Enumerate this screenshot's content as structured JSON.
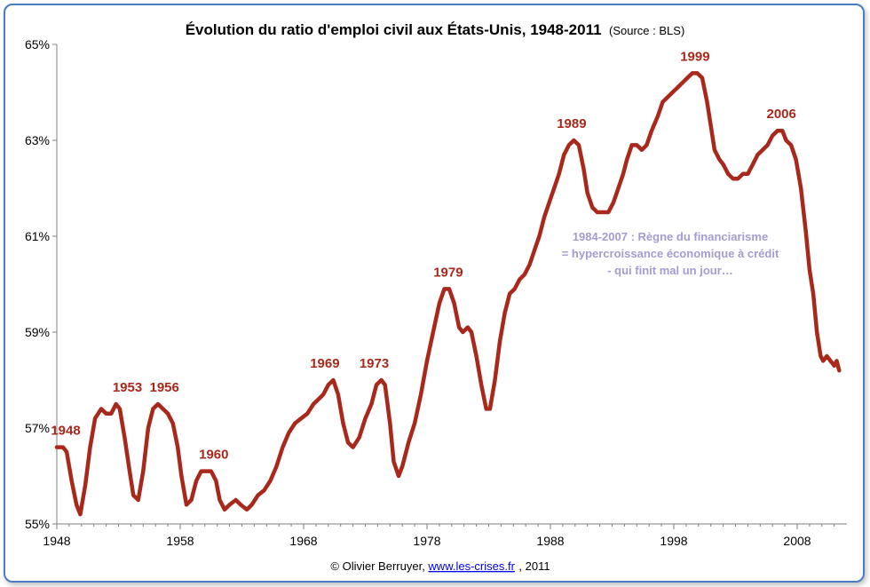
{
  "chart_data": {
    "type": "line",
    "title": "Évolution du ratio d'emploi civil aux États-Unis, 1948-2011",
    "title_source": "(Source : BLS)",
    "xlim": [
      1948,
      2011.5
    ],
    "ylim": [
      55,
      65
    ],
    "x_ticks": [
      1948,
      1958,
      1968,
      1978,
      1988,
      1998,
      2008
    ],
    "x_tick_labels": [
      "1948",
      "1958",
      "1968",
      "1978",
      "1988",
      "1998",
      "2008"
    ],
    "y_ticks": [
      55,
      57,
      59,
      61,
      63,
      65
    ],
    "y_tick_labels": [
      "55%",
      "57%",
      "59%",
      "61%",
      "63%",
      "65%"
    ],
    "grid": false,
    "color": "#a8291c",
    "series": [
      {
        "points": [
          [
            1948.0,
            56.6
          ],
          [
            1948.5,
            56.6
          ],
          [
            1948.8,
            56.5
          ],
          [
            1949.2,
            55.9
          ],
          [
            1949.6,
            55.4
          ],
          [
            1949.9,
            55.2
          ],
          [
            1950.3,
            55.8
          ],
          [
            1950.7,
            56.6
          ],
          [
            1951.1,
            57.2
          ],
          [
            1951.6,
            57.4
          ],
          [
            1952.0,
            57.3
          ],
          [
            1952.4,
            57.3
          ],
          [
            1952.8,
            57.5
          ],
          [
            1953.1,
            57.4
          ],
          [
            1953.5,
            56.8
          ],
          [
            1953.9,
            56.1
          ],
          [
            1954.2,
            55.6
          ],
          [
            1954.6,
            55.5
          ],
          [
            1955.0,
            56.1
          ],
          [
            1955.4,
            57.0
          ],
          [
            1955.8,
            57.4
          ],
          [
            1956.2,
            57.5
          ],
          [
            1956.6,
            57.4
          ],
          [
            1957.0,
            57.3
          ],
          [
            1957.4,
            57.1
          ],
          [
            1957.8,
            56.6
          ],
          [
            1958.1,
            56.0
          ],
          [
            1958.5,
            55.4
          ],
          [
            1958.9,
            55.5
          ],
          [
            1959.3,
            55.9
          ],
          [
            1959.7,
            56.1
          ],
          [
            1960.1,
            56.1
          ],
          [
            1960.5,
            56.1
          ],
          [
            1960.9,
            55.9
          ],
          [
            1961.2,
            55.5
          ],
          [
            1961.6,
            55.3
          ],
          [
            1962.0,
            55.4
          ],
          [
            1962.5,
            55.5
          ],
          [
            1962.9,
            55.4
          ],
          [
            1963.4,
            55.3
          ],
          [
            1963.8,
            55.4
          ],
          [
            1964.3,
            55.6
          ],
          [
            1964.8,
            55.7
          ],
          [
            1965.3,
            55.9
          ],
          [
            1965.8,
            56.2
          ],
          [
            1966.3,
            56.6
          ],
          [
            1966.8,
            56.9
          ],
          [
            1967.3,
            57.1
          ],
          [
            1967.8,
            57.2
          ],
          [
            1968.3,
            57.3
          ],
          [
            1968.8,
            57.5
          ],
          [
            1969.2,
            57.6
          ],
          [
            1969.6,
            57.7
          ],
          [
            1970.0,
            57.9
          ],
          [
            1970.4,
            58.0
          ],
          [
            1970.8,
            57.7
          ],
          [
            1971.2,
            57.1
          ],
          [
            1971.6,
            56.7
          ],
          [
            1972.0,
            56.6
          ],
          [
            1972.5,
            56.8
          ],
          [
            1973.0,
            57.2
          ],
          [
            1973.5,
            57.5
          ],
          [
            1973.9,
            57.9
          ],
          [
            1974.3,
            58.0
          ],
          [
            1974.6,
            57.9
          ],
          [
            1975.0,
            57.1
          ],
          [
            1975.3,
            56.3
          ],
          [
            1975.7,
            56.0
          ],
          [
            1976.0,
            56.2
          ],
          [
            1976.5,
            56.7
          ],
          [
            1977.0,
            57.1
          ],
          [
            1977.5,
            57.7
          ],
          [
            1978.0,
            58.4
          ],
          [
            1978.5,
            59.0
          ],
          [
            1979.0,
            59.6
          ],
          [
            1979.4,
            59.9
          ],
          [
            1979.8,
            59.9
          ],
          [
            1980.2,
            59.6
          ],
          [
            1980.6,
            59.1
          ],
          [
            1980.9,
            59.0
          ],
          [
            1981.3,
            59.1
          ],
          [
            1981.6,
            59.0
          ],
          [
            1982.0,
            58.5
          ],
          [
            1982.4,
            57.9
          ],
          [
            1982.8,
            57.4
          ],
          [
            1983.1,
            57.4
          ],
          [
            1983.5,
            58.0
          ],
          [
            1983.9,
            58.8
          ],
          [
            1984.3,
            59.4
          ],
          [
            1984.7,
            59.8
          ],
          [
            1985.1,
            59.9
          ],
          [
            1985.5,
            60.1
          ],
          [
            1985.9,
            60.2
          ],
          [
            1986.3,
            60.4
          ],
          [
            1986.7,
            60.7
          ],
          [
            1987.1,
            61.0
          ],
          [
            1987.5,
            61.4
          ],
          [
            1987.9,
            61.7
          ],
          [
            1988.3,
            62.0
          ],
          [
            1988.7,
            62.3
          ],
          [
            1989.1,
            62.7
          ],
          [
            1989.5,
            62.9
          ],
          [
            1989.9,
            63.0
          ],
          [
            1990.3,
            62.9
          ],
          [
            1990.7,
            62.4
          ],
          [
            1991.0,
            61.9
          ],
          [
            1991.4,
            61.6
          ],
          [
            1991.8,
            61.5
          ],
          [
            1992.3,
            61.5
          ],
          [
            1992.7,
            61.5
          ],
          [
            1993.1,
            61.7
          ],
          [
            1993.5,
            62.0
          ],
          [
            1993.9,
            62.3
          ],
          [
            1994.2,
            62.6
          ],
          [
            1994.6,
            62.9
          ],
          [
            1995.0,
            62.9
          ],
          [
            1995.4,
            62.8
          ],
          [
            1995.8,
            62.9
          ],
          [
            1996.2,
            63.2
          ],
          [
            1996.7,
            63.5
          ],
          [
            1997.1,
            63.8
          ],
          [
            1997.5,
            63.9
          ],
          [
            1997.9,
            64.0
          ],
          [
            1998.3,
            64.1
          ],
          [
            1998.7,
            64.2
          ],
          [
            1999.1,
            64.3
          ],
          [
            1999.5,
            64.4
          ],
          [
            1999.9,
            64.4
          ],
          [
            2000.3,
            64.3
          ],
          [
            2000.7,
            63.8
          ],
          [
            2001.0,
            63.3
          ],
          [
            2001.3,
            62.8
          ],
          [
            2001.7,
            62.6
          ],
          [
            2002.0,
            62.5
          ],
          [
            2002.4,
            62.3
          ],
          [
            2002.8,
            62.2
          ],
          [
            2003.2,
            62.2
          ],
          [
            2003.6,
            62.3
          ],
          [
            2004.0,
            62.3
          ],
          [
            2004.4,
            62.5
          ],
          [
            2004.8,
            62.7
          ],
          [
            2005.2,
            62.8
          ],
          [
            2005.6,
            62.9
          ],
          [
            2006.0,
            63.1
          ],
          [
            2006.4,
            63.2
          ],
          [
            2006.8,
            63.2
          ],
          [
            2007.1,
            63.0
          ],
          [
            2007.5,
            62.9
          ],
          [
            2007.9,
            62.6
          ],
          [
            2008.3,
            62.0
          ],
          [
            2008.7,
            61.1
          ],
          [
            2009.0,
            60.3
          ],
          [
            2009.3,
            59.8
          ],
          [
            2009.6,
            59.0
          ],
          [
            2009.9,
            58.5
          ],
          [
            2010.1,
            58.4
          ],
          [
            2010.4,
            58.5
          ],
          [
            2010.7,
            58.4
          ],
          [
            2011.0,
            58.3
          ],
          [
            2011.2,
            58.4
          ],
          [
            2011.4,
            58.2
          ]
        ]
      }
    ],
    "annotations": [
      {
        "label": "1948",
        "x": 1948,
        "y": 56.6
      },
      {
        "label": "1953",
        "x": 1953,
        "y": 57.5
      },
      {
        "label": "1956",
        "x": 1956,
        "y": 57.5
      },
      {
        "label": "1960",
        "x": 1960,
        "y": 56.1
      },
      {
        "label": "1969",
        "x": 1969,
        "y": 58.0
      },
      {
        "label": "1973",
        "x": 1973,
        "y": 58.0
      },
      {
        "label": "1979",
        "x": 1979,
        "y": 59.9
      },
      {
        "label": "1989",
        "x": 1989,
        "y": 63.0
      },
      {
        "label": "1999",
        "x": 1999,
        "y": 64.4
      },
      {
        "label": "2006",
        "x": 2006,
        "y": 63.2
      }
    ],
    "note_lines": [
      "1984-2007 : Règne du financiarisme",
      "= hypercroissance  économique  à crédit",
      "- qui finit mal un jour…"
    ]
  },
  "credit": {
    "prefix": "© Olivier Berruyer, ",
    "link": "www.les-crises.fr",
    "suffix": ",  2011"
  }
}
